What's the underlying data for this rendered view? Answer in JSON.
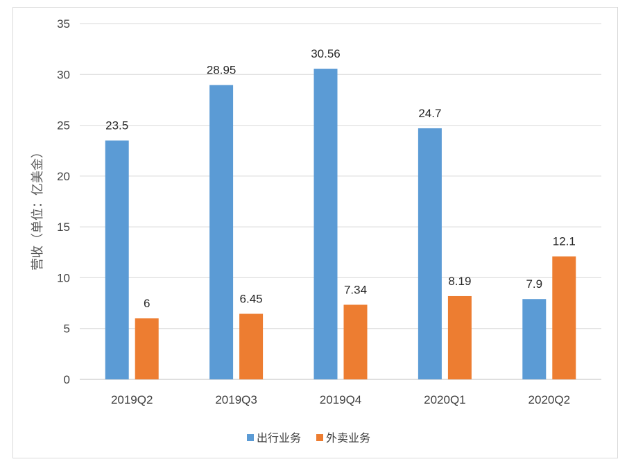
{
  "chart_data": {
    "type": "bar",
    "title": "",
    "xlabel": "",
    "ylabel": "营收（单位：亿美金）",
    "categories": [
      "2019Q2",
      "2019Q3",
      "2019Q4",
      "2020Q1",
      "2020Q2"
    ],
    "series": [
      {
        "name": "出行业务",
        "color": "#5b9bd5",
        "values": [
          23.5,
          28.95,
          30.56,
          24.7,
          7.9
        ]
      },
      {
        "name": "外卖业务",
        "color": "#ed7d31",
        "values": [
          6,
          6.45,
          7.34,
          8.19,
          12.1
        ]
      }
    ],
    "ylim": [
      0,
      35
    ],
    "yticks": [
      0,
      5,
      10,
      15,
      20,
      25,
      30,
      35
    ],
    "grid": true,
    "legend_position": "bottom"
  }
}
